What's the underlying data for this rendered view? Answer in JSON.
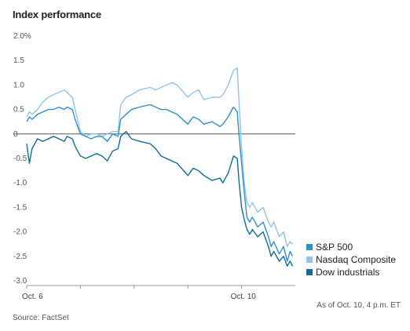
{
  "title": "Index performance",
  "note": "As of Oct. 10, 4 p.m. ET",
  "source": "Source: FactSet",
  "chart_data": {
    "type": "line",
    "title": "Index performance",
    "xlabel": "",
    "ylabel": "",
    "x_tick_labels": [
      "Oct. 6",
      "Oct. 10"
    ],
    "y_ticks": [
      2.0,
      1.5,
      1.0,
      0.5,
      0,
      -0.5,
      -1.0,
      -1.5,
      -2.0,
      -2.5,
      -3.0
    ],
    "y_tick_labels": [
      "2.0%",
      "1.5",
      "1.0",
      "0.5",
      "0",
      "-0.5",
      "-1.0",
      "-1.5",
      "-2.0",
      "-2.5",
      "-3.0"
    ],
    "ylim": [
      -3.0,
      2.0
    ],
    "x_domain": [
      0,
      5
    ],
    "grid": false,
    "legend_position": "bottom-right",
    "series": [
      {
        "name": "S&P 500",
        "color": "#2f8fd0",
        "points": [
          [
            0.0,
            0.25
          ],
          [
            0.05,
            0.35
          ],
          [
            0.1,
            0.3
          ],
          [
            0.2,
            0.4
          ],
          [
            0.3,
            0.45
          ],
          [
            0.4,
            0.5
          ],
          [
            0.5,
            0.5
          ],
          [
            0.6,
            0.55
          ],
          [
            0.7,
            0.5
          ],
          [
            0.75,
            0.55
          ],
          [
            0.85,
            0.5
          ],
          [
            0.9,
            0.3
          ],
          [
            1.0,
            0.0
          ],
          [
            1.1,
            -0.05
          ],
          [
            1.2,
            -0.1
          ],
          [
            1.3,
            -0.05
          ],
          [
            1.4,
            -0.05
          ],
          [
            1.5,
            -0.15
          ],
          [
            1.6,
            0.0
          ],
          [
            1.7,
            -0.05
          ],
          [
            1.75,
            0.3
          ],
          [
            1.85,
            0.4
          ],
          [
            1.95,
            0.5
          ],
          [
            2.1,
            0.55
          ],
          [
            2.3,
            0.6
          ],
          [
            2.4,
            0.55
          ],
          [
            2.5,
            0.5
          ],
          [
            2.6,
            0.5
          ],
          [
            2.7,
            0.45
          ],
          [
            2.8,
            0.4
          ],
          [
            3.0,
            0.2
          ],
          [
            3.1,
            0.35
          ],
          [
            3.2,
            0.3
          ],
          [
            3.3,
            0.2
          ],
          [
            3.45,
            0.25
          ],
          [
            3.6,
            0.15
          ],
          [
            3.65,
            0.2
          ],
          [
            3.75,
            0.35
          ],
          [
            3.85,
            0.55
          ],
          [
            3.92,
            0.45
          ],
          [
            3.95,
            0.0
          ],
          [
            4.0,
            -0.6
          ],
          [
            4.05,
            -1.2
          ],
          [
            4.1,
            -1.7
          ],
          [
            4.15,
            -1.8
          ],
          [
            4.2,
            -1.7
          ],
          [
            4.3,
            -1.9
          ],
          [
            4.4,
            -1.8
          ],
          [
            4.5,
            -2.1
          ],
          [
            4.55,
            -2.3
          ],
          [
            4.6,
            -2.2
          ],
          [
            4.7,
            -2.45
          ],
          [
            4.78,
            -2.3
          ],
          [
            4.85,
            -2.6
          ],
          [
            4.9,
            -2.4
          ],
          [
            4.95,
            -2.5
          ]
        ]
      },
      {
        "name": "Nasdaq Composite",
        "color": "#92c3e6",
        "points": [
          [
            0.0,
            0.35
          ],
          [
            0.05,
            0.45
          ],
          [
            0.1,
            0.4
          ],
          [
            0.2,
            0.5
          ],
          [
            0.3,
            0.65
          ],
          [
            0.4,
            0.75
          ],
          [
            0.5,
            0.8
          ],
          [
            0.6,
            0.85
          ],
          [
            0.7,
            0.9
          ],
          [
            0.75,
            0.85
          ],
          [
            0.85,
            0.75
          ],
          [
            0.9,
            0.5
          ],
          [
            1.0,
            0.05
          ],
          [
            1.1,
            -0.05
          ],
          [
            1.2,
            0.0
          ],
          [
            1.3,
            0.0
          ],
          [
            1.4,
            -0.05
          ],
          [
            1.5,
            0.0
          ],
          [
            1.6,
            0.05
          ],
          [
            1.7,
            0.05
          ],
          [
            1.75,
            0.6
          ],
          [
            1.85,
            0.75
          ],
          [
            1.95,
            0.8
          ],
          [
            2.1,
            0.9
          ],
          [
            2.3,
            0.95
          ],
          [
            2.4,
            0.9
          ],
          [
            2.5,
            0.95
          ],
          [
            2.6,
            1.0
          ],
          [
            2.7,
            1.05
          ],
          [
            2.8,
            1.0
          ],
          [
            3.0,
            0.75
          ],
          [
            3.1,
            0.85
          ],
          [
            3.2,
            0.9
          ],
          [
            3.3,
            0.7
          ],
          [
            3.45,
            0.75
          ],
          [
            3.6,
            0.75
          ],
          [
            3.65,
            0.8
          ],
          [
            3.75,
            1.0
          ],
          [
            3.85,
            1.3
          ],
          [
            3.92,
            1.35
          ],
          [
            3.95,
            0.7
          ],
          [
            4.0,
            -0.3
          ],
          [
            4.05,
            -1.0
          ],
          [
            4.1,
            -1.4
          ],
          [
            4.15,
            -1.5
          ],
          [
            4.2,
            -1.4
          ],
          [
            4.3,
            -1.6
          ],
          [
            4.4,
            -1.5
          ],
          [
            4.5,
            -1.8
          ],
          [
            4.55,
            -1.9
          ],
          [
            4.6,
            -1.8
          ],
          [
            4.7,
            -2.1
          ],
          [
            4.78,
            -2.0
          ],
          [
            4.85,
            -2.3
          ],
          [
            4.9,
            -2.2
          ],
          [
            4.95,
            -2.25
          ]
        ]
      },
      {
        "name": "Dow industrials",
        "color": "#0e6b99",
        "points": [
          [
            0.0,
            -0.2
          ],
          [
            0.05,
            -0.6
          ],
          [
            0.1,
            -0.3
          ],
          [
            0.2,
            -0.1
          ],
          [
            0.3,
            -0.15
          ],
          [
            0.4,
            -0.1
          ],
          [
            0.5,
            -0.05
          ],
          [
            0.6,
            -0.1
          ],
          [
            0.7,
            -0.15
          ],
          [
            0.75,
            -0.05
          ],
          [
            0.85,
            -0.1
          ],
          [
            0.9,
            -0.25
          ],
          [
            1.0,
            -0.45
          ],
          [
            1.1,
            -0.5
          ],
          [
            1.2,
            -0.45
          ],
          [
            1.3,
            -0.4
          ],
          [
            1.4,
            -0.45
          ],
          [
            1.5,
            -0.55
          ],
          [
            1.6,
            -0.35
          ],
          [
            1.7,
            -0.3
          ],
          [
            1.75,
            -0.05
          ],
          [
            1.85,
            0.05
          ],
          [
            1.95,
            -0.1
          ],
          [
            2.1,
            -0.15
          ],
          [
            2.3,
            -0.2
          ],
          [
            2.4,
            -0.3
          ],
          [
            2.5,
            -0.45
          ],
          [
            2.6,
            -0.5
          ],
          [
            2.7,
            -0.55
          ],
          [
            2.8,
            -0.6
          ],
          [
            3.0,
            -0.85
          ],
          [
            3.1,
            -0.7
          ],
          [
            3.2,
            -0.75
          ],
          [
            3.3,
            -0.85
          ],
          [
            3.45,
            -0.95
          ],
          [
            3.6,
            -0.9
          ],
          [
            3.65,
            -1.0
          ],
          [
            3.75,
            -0.8
          ],
          [
            3.85,
            -0.45
          ],
          [
            3.92,
            -0.5
          ],
          [
            3.95,
            -0.95
          ],
          [
            4.0,
            -1.5
          ],
          [
            4.05,
            -1.75
          ],
          [
            4.1,
            -1.95
          ],
          [
            4.15,
            -2.05
          ],
          [
            4.2,
            -1.95
          ],
          [
            4.3,
            -2.1
          ],
          [
            4.4,
            -2.0
          ],
          [
            4.5,
            -2.3
          ],
          [
            4.55,
            -2.5
          ],
          [
            4.6,
            -2.4
          ],
          [
            4.7,
            -2.6
          ],
          [
            4.78,
            -2.5
          ],
          [
            4.85,
            -2.7
          ],
          [
            4.9,
            -2.6
          ],
          [
            4.95,
            -2.7
          ]
        ]
      }
    ]
  }
}
